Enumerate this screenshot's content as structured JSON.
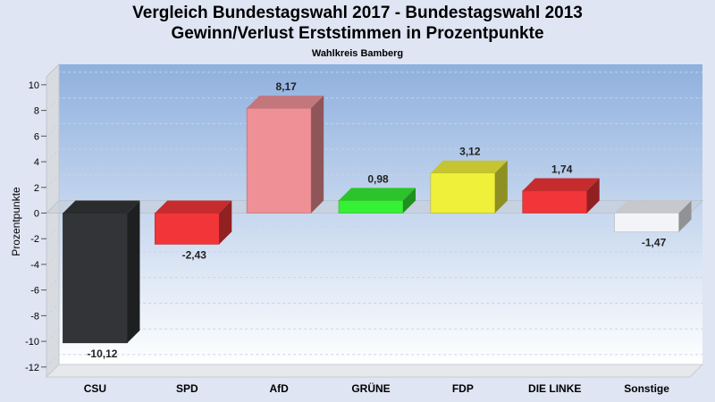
{
  "chart_data": {
    "type": "bar",
    "title": "Vergleich Bundestagswahl 2017 - Bundestagswahl 2013",
    "title2": "Gewinn/Verlust Erststimmen in Prozentpunkte",
    "subtitle": "Wahlkreis Bamberg",
    "ylabel": "Prozentpunkte",
    "xlabel": "",
    "ylim": [
      -12,
      10
    ],
    "yticks": [
      10,
      8,
      6,
      4,
      2,
      0,
      -2,
      -4,
      -6,
      -8,
      -10,
      -12
    ],
    "grid": true,
    "categories": [
      "CSU",
      "SPD",
      "AfD",
      "GRÜNE",
      "FDP",
      "DIE LINKE",
      "Sonstige"
    ],
    "values": [
      -10.12,
      -2.43,
      8.17,
      0.98,
      3.12,
      1.74,
      -1.47
    ],
    "labels": [
      "-10,12",
      "-2,43",
      "8,17",
      "0,98",
      "3,12",
      "1,74",
      "-1,47"
    ],
    "colors": [
      "#323437",
      "#f13538",
      "#ee9096",
      "#35f035",
      "#eff03a",
      "#f13538",
      "#f3f4f8"
    ]
  }
}
